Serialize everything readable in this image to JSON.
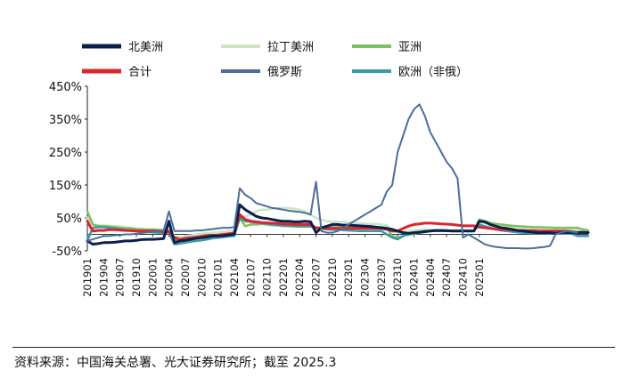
{
  "chart_data": {
    "type": "line",
    "title": "",
    "xlabel": "",
    "ylabel": "",
    "ylim": [
      -50,
      450
    ],
    "y_ticks": [
      "450%",
      "350%",
      "250%",
      "150%",
      "50%",
      "-50%"
    ],
    "y_tick_values": [
      450,
      350,
      250,
      150,
      50,
      -50
    ],
    "x_start": "201901",
    "x_tick_labels": [
      "201901",
      "201904",
      "201907",
      "201910",
      "202001",
      "202004",
      "202007",
      "202010",
      "202101",
      "202104",
      "202107",
      "202110",
      "202201",
      "202204",
      "202207",
      "202210",
      "202301",
      "202304",
      "202307",
      "202310",
      "202401",
      "202404",
      "202407",
      "202410",
      "202501"
    ],
    "legend_position": "top",
    "series": [
      {
        "name": "北美洲",
        "color": "#0b1f4d",
        "values": [
          -20,
          -30,
          -28,
          -25,
          -25,
          -24,
          -22,
          -20,
          -20,
          -18,
          -16,
          -15,
          -15,
          -14,
          -13,
          40,
          -25,
          -20,
          -18,
          -15,
          -12,
          -10,
          -8,
          -5,
          -5,
          -4,
          -2,
          0,
          90,
          75,
          65,
          55,
          50,
          48,
          45,
          42,
          40,
          40,
          38,
          38,
          40,
          38,
          5,
          20,
          25,
          30,
          30,
          28,
          28,
          27,
          26,
          25,
          24,
          22,
          20,
          18,
          15,
          10,
          5,
          3,
          5,
          6,
          8,
          10,
          12,
          12,
          11,
          10,
          10,
          10,
          10,
          10,
          40,
          38,
          30,
          25,
          20,
          18,
          15,
          12,
          10,
          8,
          6,
          5,
          5,
          5,
          3,
          5,
          6,
          5,
          5,
          6,
          5
        ]
      },
      {
        "name": "拉丁美洲",
        "color": "#cce6c2",
        "values": [
          50,
          30,
          28,
          27,
          26,
          25,
          24,
          22,
          20,
          18,
          17,
          16,
          16,
          15,
          15,
          15,
          -5,
          -8,
          -5,
          -3,
          0,
          2,
          4,
          5,
          6,
          8,
          10,
          12,
          45,
          55,
          60,
          70,
          75,
          75,
          78,
          80,
          80,
          80,
          78,
          75,
          70,
          60,
          50,
          45,
          40,
          38,
          38,
          38,
          36,
          35,
          34,
          33,
          32,
          31,
          30,
          28,
          10,
          5,
          8,
          10,
          12,
          14,
          15,
          14,
          13,
          12,
          11,
          10,
          10,
          10,
          10,
          10,
          38,
          35,
          32,
          30,
          28,
          26,
          24,
          22,
          20,
          20,
          18,
          18,
          18,
          16,
          15,
          15,
          15,
          15,
          15,
          12,
          10
        ]
      },
      {
        "name": "亚洲",
        "color": "#7cc060",
        "values": [
          70,
          30,
          25,
          25,
          24,
          22,
          20,
          18,
          18,
          16,
          15,
          14,
          14,
          13,
          12,
          12,
          -15,
          -18,
          -15,
          -12,
          -10,
          -8,
          -6,
          -5,
          -4,
          -3,
          -2,
          0,
          50,
          25,
          30,
          30,
          32,
          30,
          28,
          27,
          25,
          25,
          24,
          24,
          25,
          25,
          20,
          22,
          22,
          22,
          22,
          22,
          22,
          22,
          22,
          22,
          22,
          22,
          22,
          20,
          -5,
          -10,
          -5,
          -2,
          2,
          5,
          8,
          10,
          12,
          12,
          12,
          12,
          12,
          12,
          12,
          10,
          45,
          40,
          35,
          32,
          30,
          28,
          26,
          25,
          24,
          23,
          22,
          22,
          21,
          21,
          20,
          20,
          20,
          20,
          20,
          15,
          12
        ]
      },
      {
        "name": "合计",
        "color": "#d9262e",
        "values": [
          40,
          10,
          12,
          12,
          14,
          14,
          13,
          12,
          11,
          10,
          10,
          10,
          10,
          10,
          8,
          8,
          -10,
          -15,
          -12,
          -10,
          -8,
          -6,
          -4,
          -3,
          -2,
          0,
          2,
          4,
          60,
          45,
          40,
          38,
          36,
          35,
          34,
          33,
          32,
          31,
          30,
          30,
          30,
          30,
          20,
          18,
          18,
          18,
          18,
          18,
          18,
          18,
          18,
          18,
          18,
          18,
          18,
          15,
          10,
          10,
          18,
          25,
          30,
          32,
          34,
          34,
          33,
          32,
          31,
          30,
          28,
          26,
          26,
          26,
          22,
          20,
          18,
          16,
          15,
          14,
          13,
          12,
          12,
          11,
          11,
          10,
          10,
          10,
          10,
          10,
          10,
          8,
          6,
          6
        ]
      },
      {
        "name": "俄罗斯",
        "color": "#4b6e9c",
        "values": [
          -20,
          -15,
          -10,
          -5,
          -5,
          -3,
          -2,
          0,
          0,
          2,
          4,
          6,
          8,
          10,
          10,
          70,
          10,
          10,
          10,
          10,
          12,
          12,
          14,
          16,
          18,
          20,
          20,
          22,
          140,
          120,
          110,
          95,
          90,
          85,
          80,
          78,
          75,
          72,
          70,
          68,
          65,
          60,
          160,
          10,
          5,
          5,
          10,
          20,
          30,
          40,
          50,
          60,
          70,
          80,
          90,
          130,
          150,
          250,
          300,
          350,
          380,
          395,
          360,
          310,
          280,
          250,
          220,
          200,
          170,
          -10,
          0,
          -10,
          -20,
          -30,
          -35,
          -38,
          -40,
          -42,
          -42,
          -42,
          -43,
          -43,
          -42,
          -40,
          -38,
          -35,
          0,
          5,
          10,
          8,
          5
        ]
      },
      {
        "name": "欧洲（非俄）",
        "color": "#3b9aa8",
        "values": [
          -20,
          20,
          22,
          22,
          20,
          18,
          16,
          14,
          12,
          10,
          8,
          7,
          6,
          5,
          5,
          5,
          -30,
          -28,
          -25,
          -22,
          -20,
          -18,
          -15,
          -12,
          -10,
          -8,
          -6,
          -5,
          50,
          40,
          38,
          36,
          34,
          32,
          30,
          28,
          27,
          26,
          25,
          24,
          24,
          24,
          20,
          18,
          15,
          14,
          14,
          13,
          12,
          11,
          10,
          10,
          10,
          10,
          10,
          0,
          -10,
          -15,
          -5,
          2,
          5,
          8,
          10,
          10,
          10,
          10,
          10,
          10,
          10,
          10,
          10,
          10,
          30,
          25,
          20,
          15,
          12,
          10,
          8,
          6,
          5,
          4,
          3,
          3,
          3,
          2,
          2,
          2,
          2,
          2,
          -5,
          -5,
          -5
        ]
      }
    ]
  },
  "footer": {
    "source": "资料来源：中国海关总署、光大证券研究所；截至 2025.3"
  }
}
